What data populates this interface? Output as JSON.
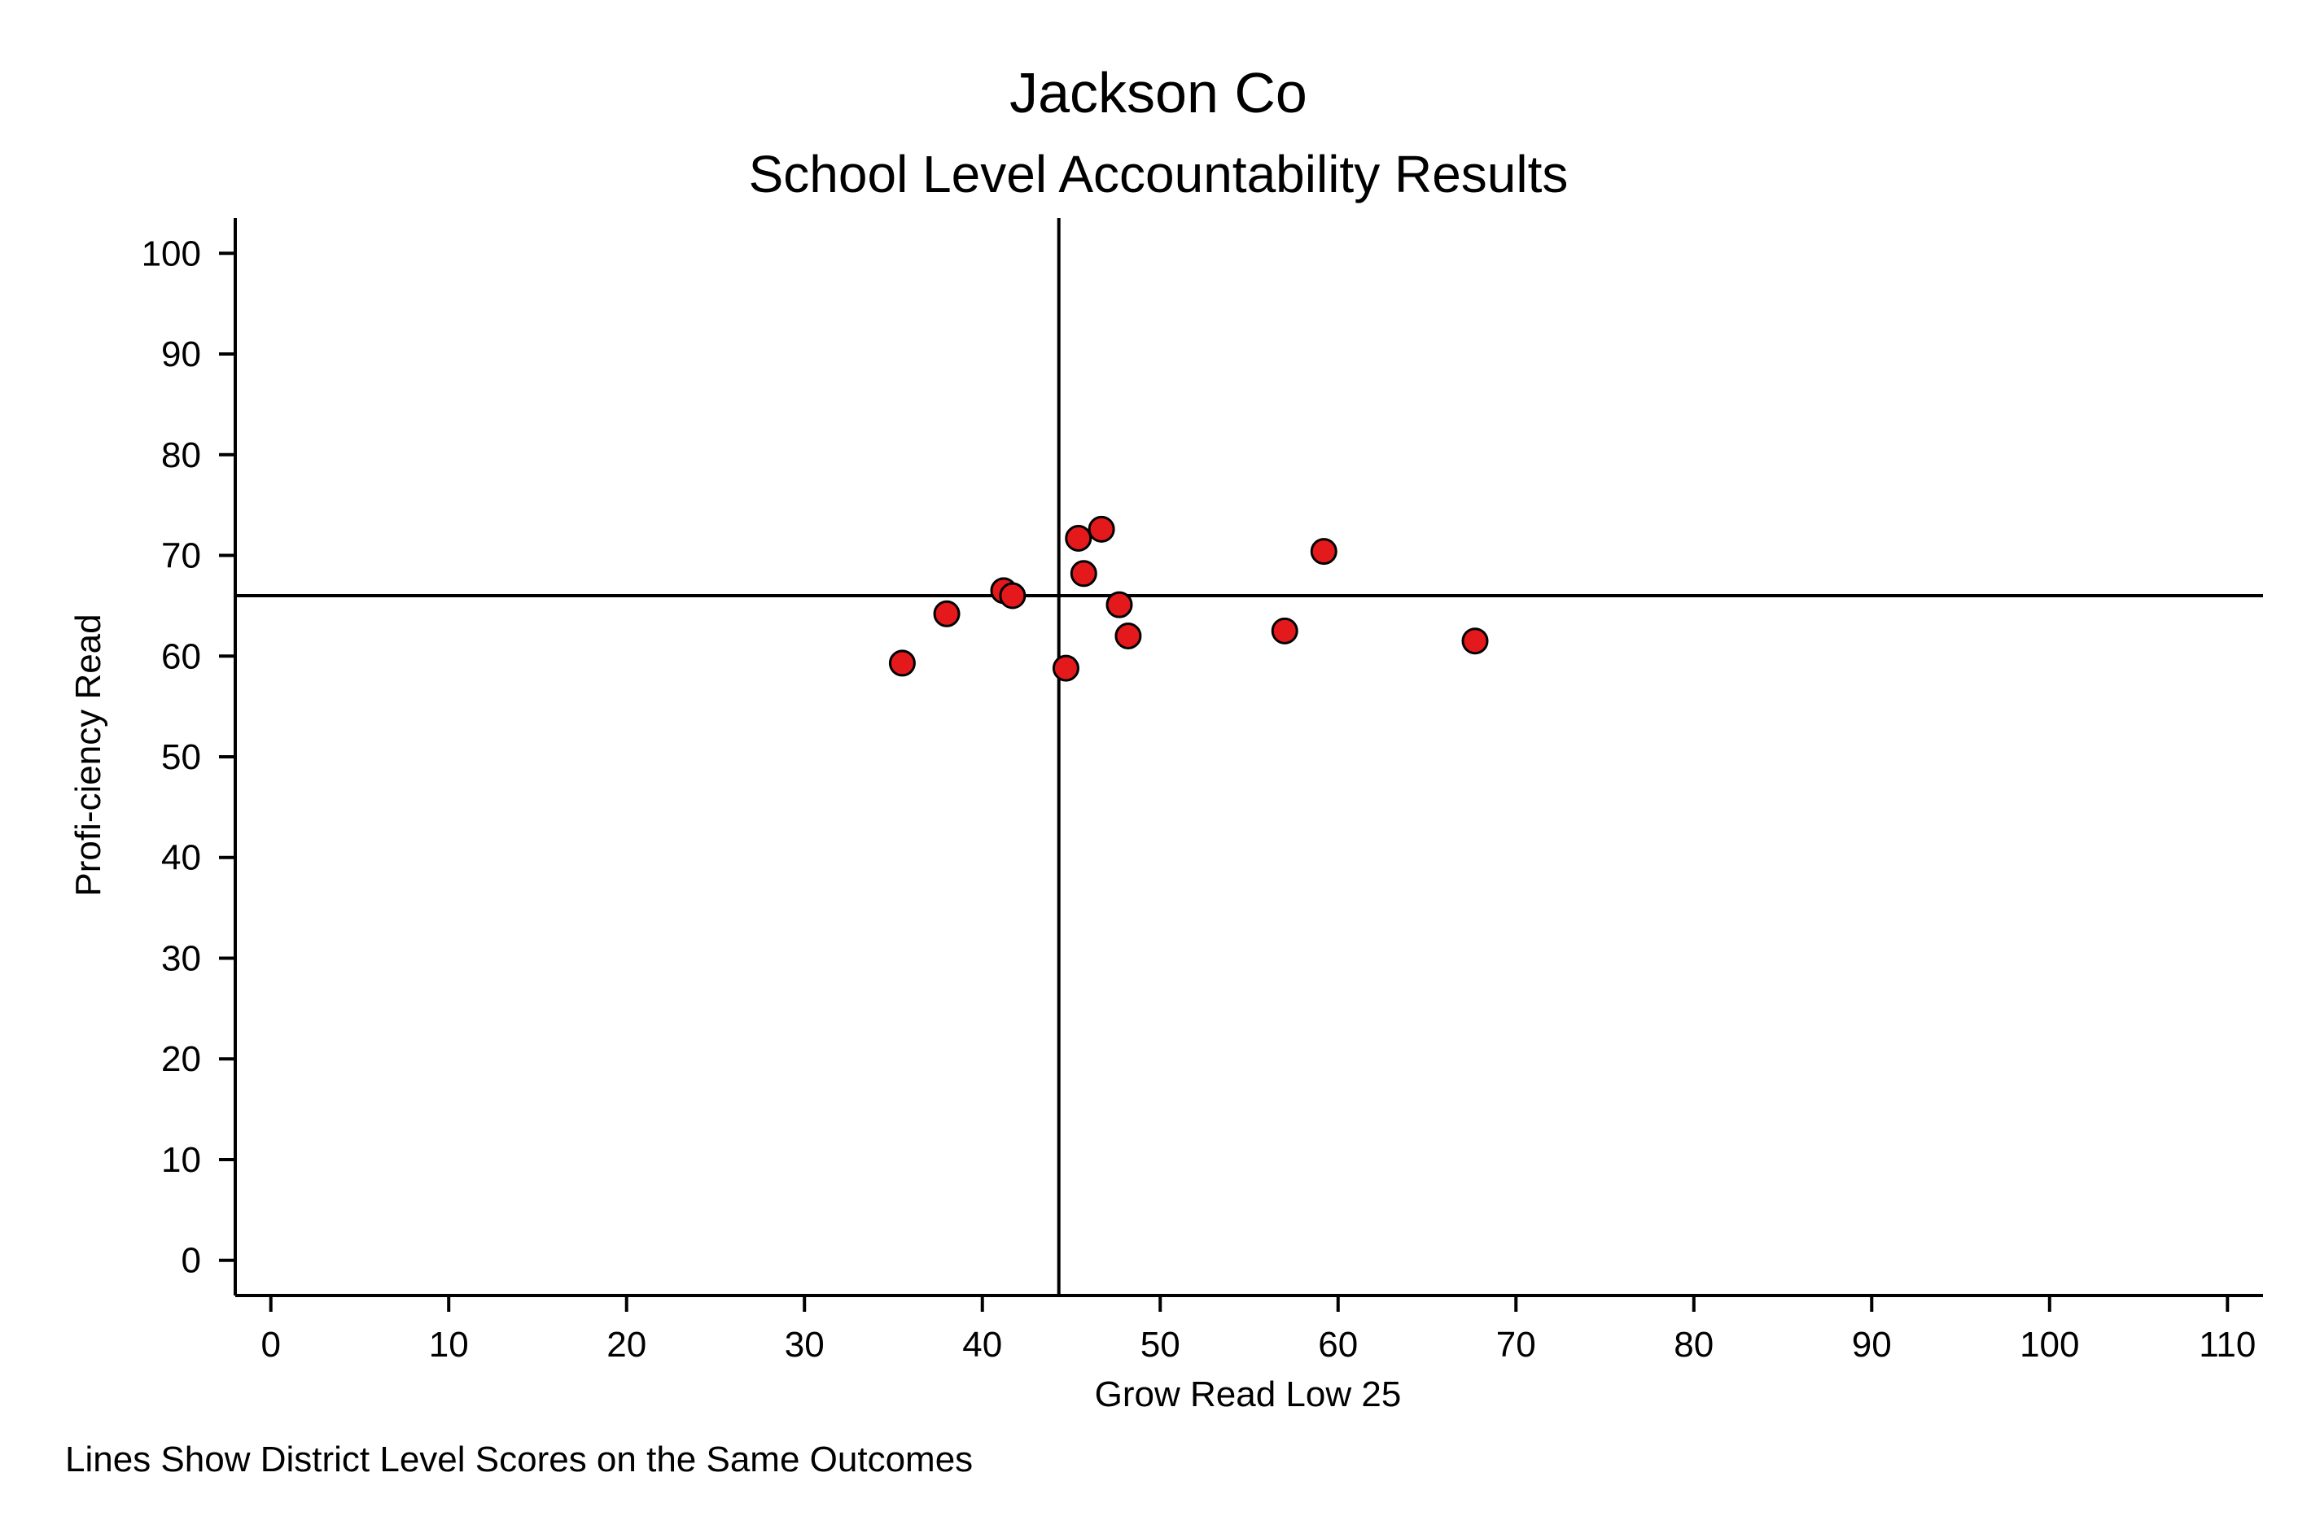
{
  "chart_data": {
    "type": "scatter",
    "title": "Jackson Co",
    "subtitle": "School Level Accountability Results",
    "xlabel": "Grow Read Low 25",
    "ylabel": "Profi-ciency Read",
    "note": "Lines Show District Level Scores on the Same Outcomes",
    "xlim": [
      -2,
      112
    ],
    "ylim": [
      -3.5,
      103.5
    ],
    "xticks": [
      "0",
      "10",
      "20",
      "30",
      "40",
      "50",
      "60",
      "70",
      "80",
      "90",
      "100",
      "110"
    ],
    "yticks": [
      "0",
      "10",
      "20",
      "30",
      "40",
      "50",
      "60",
      "70",
      "80",
      "90",
      "100"
    ],
    "grid": false,
    "reference_lines": {
      "x": 44.3,
      "y": 66.0
    },
    "marker_color": "#e3191c",
    "points": [
      {
        "x": 35.5,
        "y": 59.3
      },
      {
        "x": 38.0,
        "y": 64.2
      },
      {
        "x": 41.2,
        "y": 66.5
      },
      {
        "x": 41.7,
        "y": 66.0
      },
      {
        "x": 44.7,
        "y": 58.8
      },
      {
        "x": 45.4,
        "y": 71.7
      },
      {
        "x": 45.7,
        "y": 68.2
      },
      {
        "x": 46.7,
        "y": 72.6
      },
      {
        "x": 47.7,
        "y": 65.1
      },
      {
        "x": 48.2,
        "y": 62.0
      },
      {
        "x": 57.0,
        "y": 62.5
      },
      {
        "x": 59.2,
        "y": 70.4
      },
      {
        "x": 67.7,
        "y": 61.5
      }
    ]
  }
}
